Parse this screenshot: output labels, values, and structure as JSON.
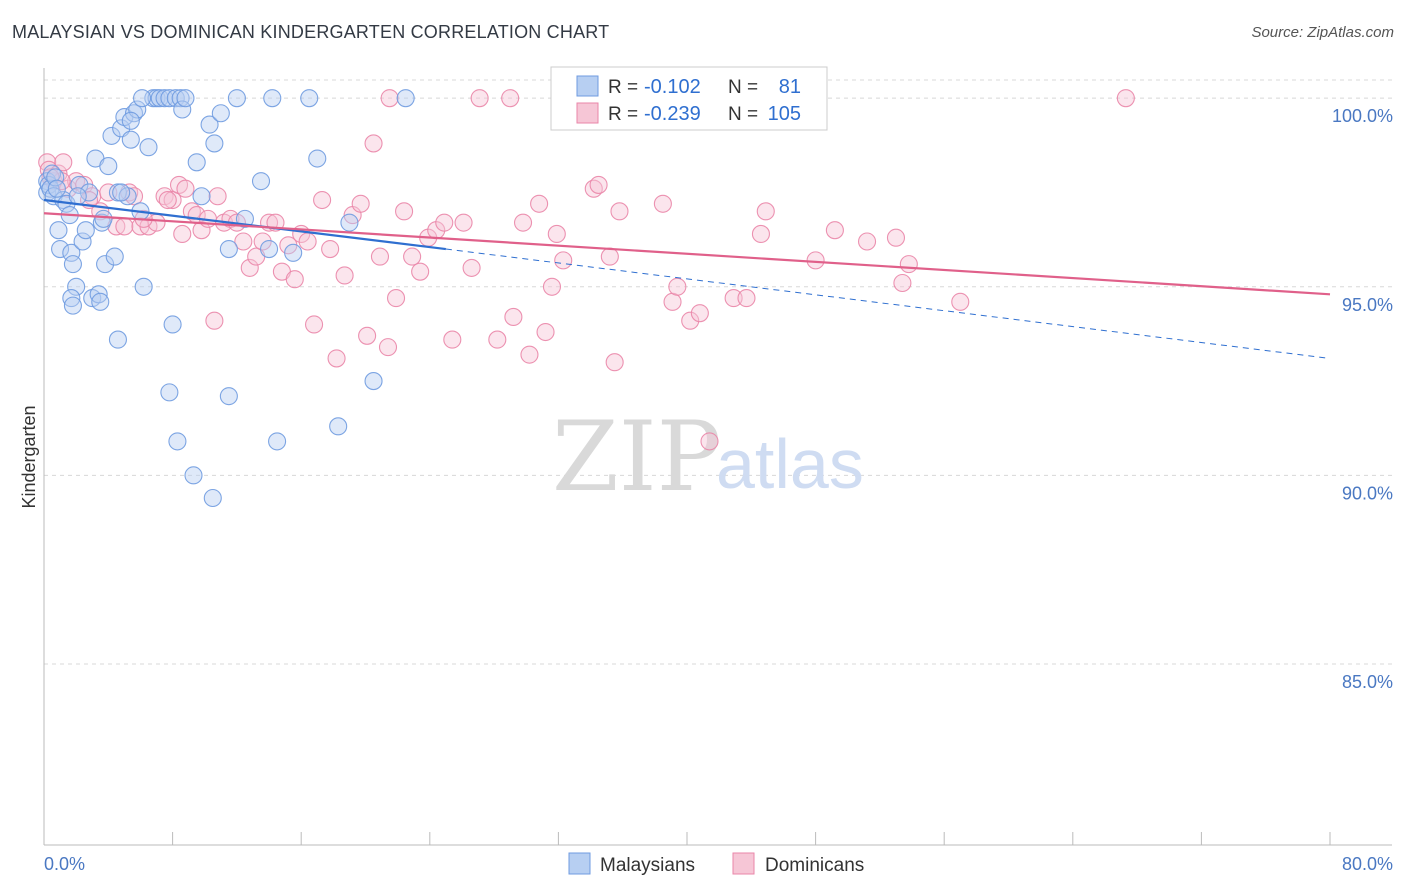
{
  "title": "MALAYSIAN VS DOMINICAN KINDERGARTEN CORRELATION CHART",
  "source": "Source: ZipAtlas.com",
  "watermark": {
    "zip": "ZIP",
    "atlas": "atlas"
  },
  "colors": {
    "malaysians": "#6f9be0",
    "malaysians_fill": "#b7cff2",
    "dominicans": "#ea86a8",
    "dominicans_fill": "#f6c6d6",
    "trend_blue": "#2f6fd0",
    "trend_pink": "#e0608a",
    "tick_text": "#4a78c2",
    "grid": "#d8d8d8"
  },
  "legend_box": {
    "rows": [
      {
        "r_label": "R =",
        "r_value": "-0.102",
        "n_label": "N =",
        "n_value": "81"
      },
      {
        "r_label": "R =",
        "r_value": "-0.239",
        "n_label": "N =",
        "n_value": "105"
      }
    ]
  },
  "chart_data": {
    "type": "scatter",
    "title": "MALAYSIAN VS DOMINICAN KINDERGARTEN CORRELATION CHART",
    "xlabel": "",
    "ylabel": "Kindergarten",
    "xlim": [
      0,
      80
    ],
    "ylim": [
      80.2,
      100.8
    ],
    "x_tick_labels": [
      "0.0%",
      "80.0%"
    ],
    "y_ticks": [
      85,
      90,
      95,
      100
    ],
    "y_tick_labels": [
      "85.0%",
      "90.0%",
      "95.0%",
      "100.0%"
    ],
    "grid": true,
    "legend_position": "bottom-center",
    "series": [
      {
        "name": "Malaysians",
        "r": -0.102,
        "n": 81,
        "trend": {
          "x": [
            0,
            25
          ],
          "y": [
            97.3,
            96.0
          ],
          "dashed_to": [
            80,
            93.1
          ]
        },
        "points": [
          [
            0.2,
            97.8
          ],
          [
            0.2,
            97.5
          ],
          [
            0.3,
            97.7
          ],
          [
            0.4,
            97.6
          ],
          [
            0.5,
            98.0
          ],
          [
            0.6,
            97.4
          ],
          [
            0.7,
            97.9
          ],
          [
            0.9,
            96.5
          ],
          [
            1.0,
            96.0
          ],
          [
            1.2,
            97.3
          ],
          [
            1.4,
            97.2
          ],
          [
            1.6,
            96.9
          ],
          [
            1.7,
            95.9
          ],
          [
            1.8,
            95.6
          ],
          [
            2.0,
            95.0
          ],
          [
            2.2,
            97.7
          ],
          [
            2.4,
            96.2
          ],
          [
            2.6,
            96.5
          ],
          [
            2.8,
            97.5
          ],
          [
            3.0,
            94.7
          ],
          [
            3.2,
            98.4
          ],
          [
            3.4,
            94.8
          ],
          [
            3.6,
            96.7
          ],
          [
            3.8,
            95.6
          ],
          [
            4.0,
            98.2
          ],
          [
            4.2,
            99.0
          ],
          [
            4.4,
            95.8
          ],
          [
            4.6,
            97.5
          ],
          [
            4.8,
            99.2
          ],
          [
            5.0,
            99.5
          ],
          [
            5.2,
            97.4
          ],
          [
            5.4,
            98.9
          ],
          [
            5.6,
            99.6
          ],
          [
            5.8,
            99.7
          ],
          [
            6.0,
            97.0
          ],
          [
            6.2,
            95.0
          ],
          [
            6.5,
            98.7
          ],
          [
            6.8,
            100.0
          ],
          [
            7.0,
            100.0
          ],
          [
            7.2,
            100.0
          ],
          [
            7.5,
            100.0
          ],
          [
            7.8,
            100.0
          ],
          [
            8.0,
            94.0
          ],
          [
            8.2,
            100.0
          ],
          [
            8.5,
            100.0
          ],
          [
            8.6,
            99.7
          ],
          [
            8.8,
            100.0
          ],
          [
            9.5,
            98.3
          ],
          [
            9.8,
            97.4
          ],
          [
            10.3,
            99.3
          ],
          [
            10.6,
            98.8
          ],
          [
            11.0,
            99.6
          ],
          [
            11.5,
            96.0
          ],
          [
            12.0,
            100.0
          ],
          [
            12.5,
            96.8
          ],
          [
            13.5,
            97.8
          ],
          [
            14.0,
            96.0
          ],
          [
            14.2,
            100.0
          ],
          [
            15.5,
            95.9
          ],
          [
            16.5,
            100.0
          ],
          [
            17.0,
            98.4
          ],
          [
            19.0,
            96.7
          ],
          [
            20.5,
            92.5
          ],
          [
            22.5,
            100.0
          ],
          [
            4.6,
            93.6
          ],
          [
            7.8,
            92.2
          ],
          [
            8.3,
            90.9
          ],
          [
            9.3,
            90.0
          ],
          [
            10.5,
            89.4
          ],
          [
            11.5,
            92.1
          ],
          [
            14.5,
            90.9
          ],
          [
            18.3,
            91.3
          ],
          [
            1.7,
            94.7
          ],
          [
            1.8,
            94.5
          ],
          [
            3.5,
            94.6
          ],
          [
            2.1,
            97.4
          ],
          [
            0.8,
            97.6
          ],
          [
            4.8,
            97.5
          ],
          [
            3.7,
            96.8
          ],
          [
            5.4,
            99.4
          ],
          [
            6.1,
            100.0
          ]
        ]
      },
      {
        "name": "Dominicans",
        "r": -0.239,
        "n": 105,
        "trend": {
          "x": [
            0,
            80
          ],
          "y": [
            96.95,
            94.8
          ]
        },
        "points": [
          [
            0.2,
            98.3
          ],
          [
            0.3,
            98.1
          ],
          [
            0.6,
            97.8
          ],
          [
            0.9,
            98.0
          ],
          [
            1.2,
            98.3
          ],
          [
            1.5,
            97.6
          ],
          [
            2.0,
            97.8
          ],
          [
            2.5,
            97.7
          ],
          [
            3.0,
            97.4
          ],
          [
            3.5,
            97.0
          ],
          [
            4.0,
            97.5
          ],
          [
            4.5,
            96.6
          ],
          [
            5.0,
            96.6
          ],
          [
            5.3,
            97.5
          ],
          [
            5.6,
            97.4
          ],
          [
            6.0,
            96.6
          ],
          [
            6.5,
            96.6
          ],
          [
            7.0,
            96.7
          ],
          [
            7.5,
            97.4
          ],
          [
            8.0,
            97.3
          ],
          [
            8.4,
            97.7
          ],
          [
            8.8,
            97.6
          ],
          [
            9.2,
            97.0
          ],
          [
            9.5,
            96.9
          ],
          [
            9.8,
            96.5
          ],
          [
            10.2,
            96.8
          ],
          [
            10.6,
            94.1
          ],
          [
            10.8,
            97.4
          ],
          [
            11.2,
            96.7
          ],
          [
            11.6,
            96.8
          ],
          [
            12.0,
            96.7
          ],
          [
            12.4,
            96.2
          ],
          [
            12.8,
            95.5
          ],
          [
            13.2,
            95.8
          ],
          [
            13.6,
            96.2
          ],
          [
            14.0,
            96.7
          ],
          [
            14.4,
            96.7
          ],
          [
            14.8,
            95.4
          ],
          [
            15.2,
            96.1
          ],
          [
            15.6,
            95.2
          ],
          [
            16.0,
            96.4
          ],
          [
            16.4,
            96.2
          ],
          [
            16.8,
            94.0
          ],
          [
            17.3,
            97.3
          ],
          [
            17.8,
            96.0
          ],
          [
            18.2,
            93.1
          ],
          [
            18.7,
            95.3
          ],
          [
            19.2,
            96.9
          ],
          [
            19.7,
            97.2
          ],
          [
            20.1,
            93.7
          ],
          [
            20.5,
            98.8
          ],
          [
            20.9,
            95.8
          ],
          [
            21.4,
            93.4
          ],
          [
            21.9,
            94.7
          ],
          [
            22.4,
            97.0
          ],
          [
            22.9,
            95.8
          ],
          [
            23.4,
            95.4
          ],
          [
            23.9,
            96.3
          ],
          [
            24.4,
            96.5
          ],
          [
            24.9,
            96.7
          ],
          [
            25.4,
            93.6
          ],
          [
            26.1,
            96.7
          ],
          [
            26.6,
            95.5
          ],
          [
            27.1,
            100.0
          ],
          [
            28.2,
            93.6
          ],
          [
            29.0,
            100.0
          ],
          [
            29.2,
            94.2
          ],
          [
            29.8,
            96.7
          ],
          [
            30.2,
            93.2
          ],
          [
            30.8,
            97.2
          ],
          [
            31.2,
            93.8
          ],
          [
            31.6,
            95.0
          ],
          [
            31.9,
            96.4
          ],
          [
            32.3,
            95.7
          ],
          [
            33.6,
            100.0
          ],
          [
            34.2,
            97.6
          ],
          [
            34.5,
            97.7
          ],
          [
            35.2,
            95.8
          ],
          [
            35.5,
            93.0
          ],
          [
            35.8,
            97.0
          ],
          [
            38.5,
            97.2
          ],
          [
            39.1,
            94.6
          ],
          [
            39.4,
            95.0
          ],
          [
            40.2,
            94.1
          ],
          [
            40.8,
            94.3
          ],
          [
            41.4,
            90.9
          ],
          [
            42.9,
            94.7
          ],
          [
            43.7,
            94.7
          ],
          [
            44.6,
            96.4
          ],
          [
            44.9,
            97.0
          ],
          [
            48.0,
            95.7
          ],
          [
            49.2,
            96.5
          ],
          [
            51.2,
            96.2
          ],
          [
            53.0,
            96.3
          ],
          [
            53.4,
            95.1
          ],
          [
            53.8,
            95.6
          ],
          [
            57.0,
            94.6
          ],
          [
            67.3,
            100.0
          ],
          [
            21.5,
            100.0
          ],
          [
            1.1,
            97.8
          ],
          [
            2.8,
            97.3
          ],
          [
            0.4,
            97.9
          ],
          [
            6.2,
            96.8
          ],
          [
            7.7,
            97.3
          ],
          [
            8.6,
            96.4
          ]
        ]
      }
    ]
  }
}
